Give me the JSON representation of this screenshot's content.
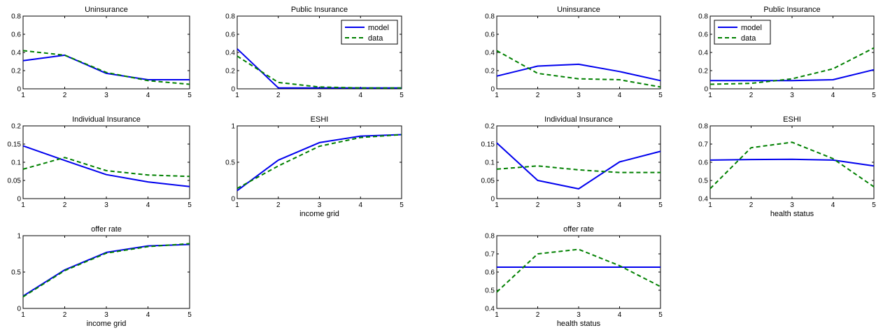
{
  "colors": {
    "model": "#0000ee",
    "data": "#008000"
  },
  "chart_data": [
    {
      "type": "line",
      "group": "income",
      "title": "Uninsurance",
      "xlabel": "",
      "x": [
        1,
        2,
        3,
        4,
        5
      ],
      "xticks": [
        1,
        2,
        3,
        4,
        5
      ],
      "xlim": [
        1,
        5
      ],
      "ylim": [
        0,
        0.8
      ],
      "yticks": [
        0,
        0.2,
        0.4,
        0.6,
        0.8
      ],
      "ytick_labels": [
        "0",
        "0.2",
        "0.4",
        "0.6",
        "0.8"
      ],
      "legend": false,
      "series": [
        {
          "name": "model",
          "values": [
            0.31,
            0.37,
            0.17,
            0.1,
            0.1
          ]
        },
        {
          "name": "data",
          "values": [
            0.42,
            0.37,
            0.18,
            0.09,
            0.05
          ]
        }
      ]
    },
    {
      "type": "line",
      "group": "income",
      "title": "Public Insurance",
      "xlabel": "",
      "x": [
        1,
        2,
        3,
        4,
        5
      ],
      "xticks": [
        1,
        2,
        3,
        4,
        5
      ],
      "xlim": [
        1,
        5
      ],
      "ylim": [
        0,
        0.8
      ],
      "yticks": [
        0,
        0.2,
        0.4,
        0.6,
        0.8
      ],
      "ytick_labels": [
        "0",
        "0.2",
        "0.4",
        "0.6",
        "0.8"
      ],
      "legend": true,
      "legend_position": "top-right",
      "series": [
        {
          "name": "model",
          "values": [
            0.44,
            0.01,
            0.01,
            0.01,
            0.01
          ]
        },
        {
          "name": "data",
          "values": [
            0.36,
            0.07,
            0.02,
            0.01,
            0.01
          ]
        }
      ]
    },
    {
      "type": "line",
      "group": "health",
      "title": "Uninsurance",
      "xlabel": "",
      "x": [
        1,
        2,
        3,
        4,
        5
      ],
      "xticks": [
        1,
        2,
        3,
        4,
        5
      ],
      "xlim": [
        1,
        5
      ],
      "ylim": [
        0,
        0.8
      ],
      "yticks": [
        0,
        0.2,
        0.4,
        0.6,
        0.8
      ],
      "ytick_labels": [
        "0",
        "0.2",
        "0.4",
        "0.6",
        "0.8"
      ],
      "legend": false,
      "series": [
        {
          "name": "model",
          "values": [
            0.14,
            0.25,
            0.27,
            0.19,
            0.09
          ]
        },
        {
          "name": "data",
          "values": [
            0.42,
            0.17,
            0.11,
            0.1,
            0.02
          ]
        }
      ]
    },
    {
      "type": "line",
      "group": "health",
      "title": "Public Insurance",
      "xlabel": "",
      "x": [
        1,
        2,
        3,
        4,
        5
      ],
      "xticks": [
        1,
        2,
        3,
        4,
        5
      ],
      "xlim": [
        1,
        5
      ],
      "ylim": [
        0,
        0.8
      ],
      "yticks": [
        0,
        0.2,
        0.4,
        0.6,
        0.8
      ],
      "ytick_labels": [
        "0",
        "0.2",
        "0.4",
        "0.6",
        "0.8"
      ],
      "legend": true,
      "legend_position": "top-left",
      "series": [
        {
          "name": "model",
          "values": [
            0.09,
            0.09,
            0.09,
            0.1,
            0.21
          ]
        },
        {
          "name": "data",
          "values": [
            0.05,
            0.06,
            0.11,
            0.22,
            0.45
          ]
        }
      ]
    },
    {
      "type": "line",
      "group": "income",
      "title": "Individual Insurance",
      "xlabel": "",
      "x": [
        1,
        2,
        3,
        4,
        5
      ],
      "xticks": [
        1,
        2,
        3,
        4,
        5
      ],
      "xlim": [
        1,
        5
      ],
      "ylim": [
        0,
        0.2
      ],
      "yticks": [
        0,
        0.05,
        0.1,
        0.15,
        0.2
      ],
      "ytick_labels": [
        "0",
        "0.05",
        "0.1",
        "0.15",
        "0.2"
      ],
      "legend": false,
      "series": [
        {
          "name": "model",
          "values": [
            0.145,
            0.105,
            0.066,
            0.046,
            0.033
          ]
        },
        {
          "name": "data",
          "values": [
            0.081,
            0.113,
            0.077,
            0.065,
            0.061
          ]
        }
      ]
    },
    {
      "type": "line",
      "group": "income",
      "title": "ESHI",
      "xlabel": "income grid",
      "x": [
        1,
        2,
        3,
        4,
        5
      ],
      "xticks": [
        1,
        2,
        3,
        4,
        5
      ],
      "xlim": [
        1,
        5
      ],
      "ylim": [
        0,
        1
      ],
      "yticks": [
        0,
        0.5,
        1
      ],
      "ytick_labels": [
        "0",
        "0.5",
        "1"
      ],
      "legend": false,
      "series": [
        {
          "name": "model",
          "values": [
            0.11,
            0.53,
            0.77,
            0.86,
            0.88
          ]
        },
        {
          "name": "data",
          "values": [
            0.14,
            0.45,
            0.72,
            0.84,
            0.88
          ]
        }
      ]
    },
    {
      "type": "line",
      "group": "health",
      "title": "Individual Insurance",
      "xlabel": "",
      "x": [
        1,
        2,
        3,
        4,
        5
      ],
      "xticks": [
        1,
        2,
        3,
        4,
        5
      ],
      "xlim": [
        1,
        5
      ],
      "ylim": [
        0,
        0.2
      ],
      "yticks": [
        0,
        0.05,
        0.1,
        0.15,
        0.2
      ],
      "ytick_labels": [
        "0",
        "0.05",
        "0.1",
        "0.15",
        "0.2"
      ],
      "legend": false,
      "series": [
        {
          "name": "model",
          "values": [
            0.153,
            0.05,
            0.027,
            0.101,
            0.13
          ]
        },
        {
          "name": "data",
          "values": [
            0.081,
            0.09,
            0.079,
            0.072,
            0.072
          ]
        }
      ]
    },
    {
      "type": "line",
      "group": "health",
      "title": "ESHI",
      "xlabel": "health status",
      "x": [
        1,
        2,
        3,
        4,
        5
      ],
      "xticks": [
        1,
        2,
        3,
        4,
        5
      ],
      "xlim": [
        1,
        5
      ],
      "ylim": [
        0.4,
        0.8
      ],
      "yticks": [
        0.4,
        0.5,
        0.6,
        0.7,
        0.8
      ],
      "ytick_labels": [
        "0.4",
        "0.5",
        "0.6",
        "0.7",
        "0.8"
      ],
      "legend": false,
      "series": [
        {
          "name": "model",
          "values": [
            0.612,
            0.615,
            0.616,
            0.612,
            0.58
          ]
        },
        {
          "name": "data",
          "values": [
            0.455,
            0.68,
            0.71,
            0.62,
            0.465
          ]
        }
      ]
    },
    {
      "type": "line",
      "group": "income",
      "title": "offer rate",
      "xlabel": "income grid",
      "x": [
        1,
        2,
        3,
        4,
        5
      ],
      "xticks": [
        1,
        2,
        3,
        4,
        5
      ],
      "xlim": [
        1,
        5
      ],
      "ylim": [
        0,
        1
      ],
      "yticks": [
        0,
        0.5,
        1
      ],
      "ytick_labels": [
        "0",
        "0.5",
        "1"
      ],
      "legend": false,
      "series": [
        {
          "name": "model",
          "values": [
            0.17,
            0.53,
            0.77,
            0.86,
            0.88
          ]
        },
        {
          "name": "data",
          "values": [
            0.16,
            0.52,
            0.76,
            0.85,
            0.89
          ]
        }
      ]
    },
    {
      "type": "line",
      "group": "health",
      "title": "offer rate",
      "xlabel": "health status",
      "x": [
        1,
        2,
        3,
        4,
        5
      ],
      "xticks": [
        1,
        2,
        3,
        4,
        5
      ],
      "xlim": [
        1,
        5
      ],
      "ylim": [
        0.4,
        0.8
      ],
      "yticks": [
        0.4,
        0.5,
        0.6,
        0.7,
        0.8
      ],
      "ytick_labels": [
        "0.4",
        "0.5",
        "0.6",
        "0.7",
        "0.8"
      ],
      "legend": false,
      "series": [
        {
          "name": "model",
          "values": [
            0.627,
            0.627,
            0.627,
            0.627,
            0.627
          ]
        },
        {
          "name": "data",
          "values": [
            0.49,
            0.7,
            0.725,
            0.635,
            0.52
          ]
        }
      ]
    }
  ]
}
